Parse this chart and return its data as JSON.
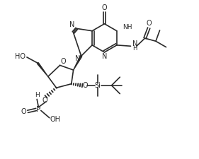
{
  "background_color": "#ffffff",
  "line_color": "#2a2a2a",
  "line_width": 1.2,
  "figsize": [
    2.81,
    2.25
  ],
  "dpi": 100,
  "xlim": [
    0,
    10
  ],
  "ylim": [
    0,
    8
  ]
}
